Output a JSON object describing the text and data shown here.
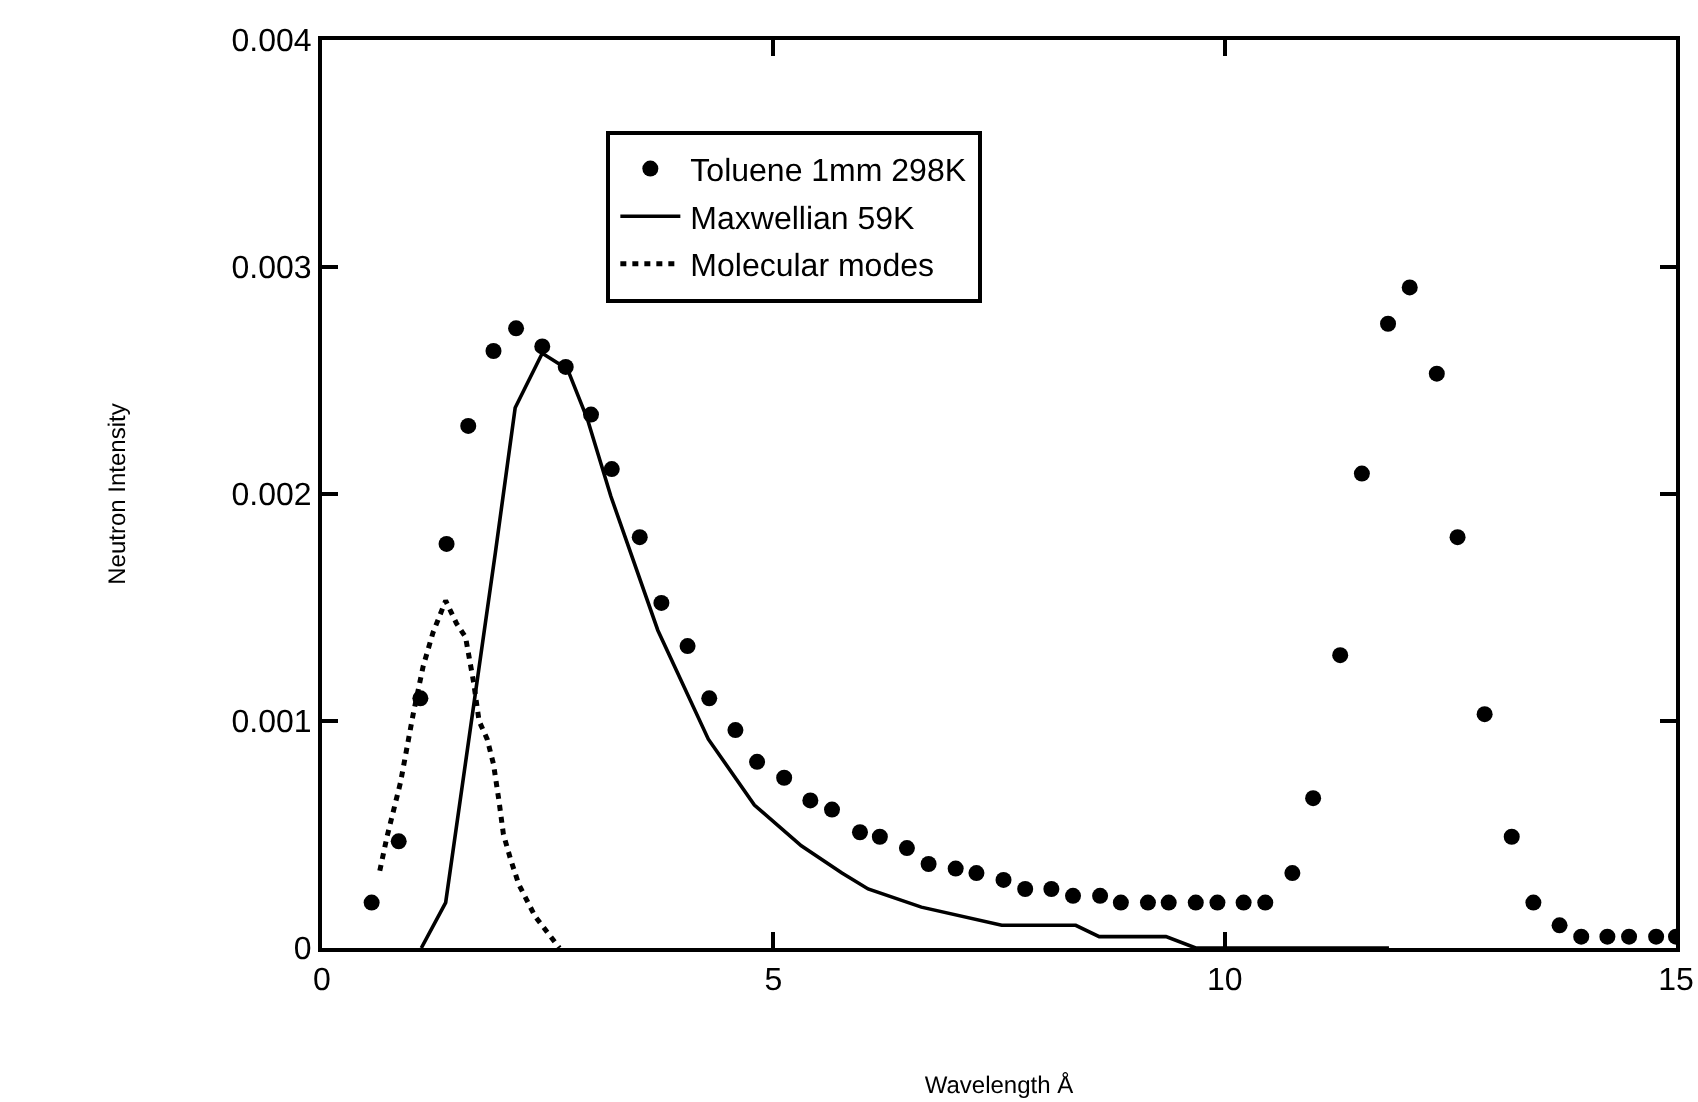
{
  "chart_data": {
    "type": "scatter",
    "xlabel": "Wavelength Å",
    "ylabel": "Neutron Intensity",
    "xlim": [
      0,
      15
    ],
    "xticks": [
      0,
      5,
      10,
      15
    ],
    "ylim": [
      0,
      0.004
    ],
    "yticks": [
      0,
      0.001,
      0.002,
      0.003,
      0.004
    ],
    "grid": false,
    "legend": "top",
    "series": [
      {
        "name": "Toluene 1mm 298K",
        "marker": "circle",
        "color": "#000000",
        "x": [
          0.55,
          0.85,
          1.09,
          1.38,
          1.62,
          1.9,
          2.15,
          2.44,
          2.7,
          2.98,
          3.21,
          3.52,
          3.76,
          4.05,
          4.29,
          4.58,
          4.82,
          5.12,
          5.41,
          5.65,
          5.96,
          6.18,
          6.48,
          6.72,
          7.02,
          7.25,
          7.55,
          7.79,
          8.08,
          8.32,
          8.62,
          8.85,
          9.15,
          9.38,
          9.68,
          9.92,
          10.21,
          10.45,
          10.75,
          10.98,
          11.28,
          11.52,
          11.81,
          12.05,
          12.35,
          12.58,
          12.88,
          13.18,
          13.42,
          13.71,
          13.95,
          14.24,
          14.48,
          14.78,
          15
        ],
        "values": [
          0.0002,
          0.00047,
          0.0011,
          0.00178,
          0.0023,
          0.00263,
          0.00273,
          0.00265,
          0.00256,
          0.00235,
          0.00211,
          0.00181,
          0.00152,
          0.00133,
          0.0011,
          0.00096,
          0.00082,
          0.00075,
          0.00065,
          0.00061,
          0.00051,
          0.00049,
          0.00044,
          0.00037,
          0.00035,
          0.00033,
          0.0003,
          0.00026,
          0.00026,
          0.00023,
          0.00023,
          0.0002,
          0.0002,
          0.0002,
          0.0002,
          0.0002,
          0.0002,
          0.0002,
          0.00033,
          0.00066,
          0.00129,
          0.00209,
          0.00275,
          0.00291,
          0.00253,
          0.00181,
          0.00103,
          0.00049,
          0.0002,
          0.0001,
          5e-05,
          5e-05,
          5e-05,
          5e-05,
          5e-05
        ]
      },
      {
        "name": "Maxwellian 59K",
        "type": "line",
        "marker": "none",
        "line_style": "solid",
        "color": "#000000",
        "x": [
          1.1,
          1.37,
          1.92,
          2.14,
          2.44,
          2.72,
          2.94,
          3.2,
          3.72,
          4.28,
          4.79,
          5.31,
          5.76,
          6.05,
          6.64,
          7.53,
          7.76,
          8.09,
          8.35,
          8.61,
          9.35,
          9.68,
          9.9,
          11.82
        ],
        "values": [
          0,
          0.0002,
          0.00174,
          0.00238,
          0.00262,
          0.00255,
          0.00233,
          0.00199,
          0.0014,
          0.00092,
          0.00063,
          0.00045,
          0.00033,
          0.00026,
          0.00018,
          0.0001,
          0.0001,
          0.0001,
          0.0001,
          5e-05,
          5e-05,
          0,
          0,
          0
        ]
      },
      {
        "name": "Molecular modes",
        "type": "line",
        "marker": "none",
        "line_style": "dotted",
        "color": "#000000",
        "x": [
          0.64,
          0.72,
          0.87,
          1.01,
          1.12,
          1.23,
          1.37,
          1.49,
          1.59,
          1.68,
          1.74,
          1.83,
          1.9,
          1.96,
          2.01,
          2.09,
          2.18,
          2.36,
          2.63
        ],
        "values": [
          0.00034,
          0.00049,
          0.00073,
          0.00103,
          0.00124,
          0.00139,
          0.00153,
          0.00143,
          0.00137,
          0.00117,
          0.001,
          0.00092,
          0.00081,
          0.00065,
          0.0005,
          0.00039,
          0.00028,
          0.00014,
          0
        ]
      }
    ]
  }
}
